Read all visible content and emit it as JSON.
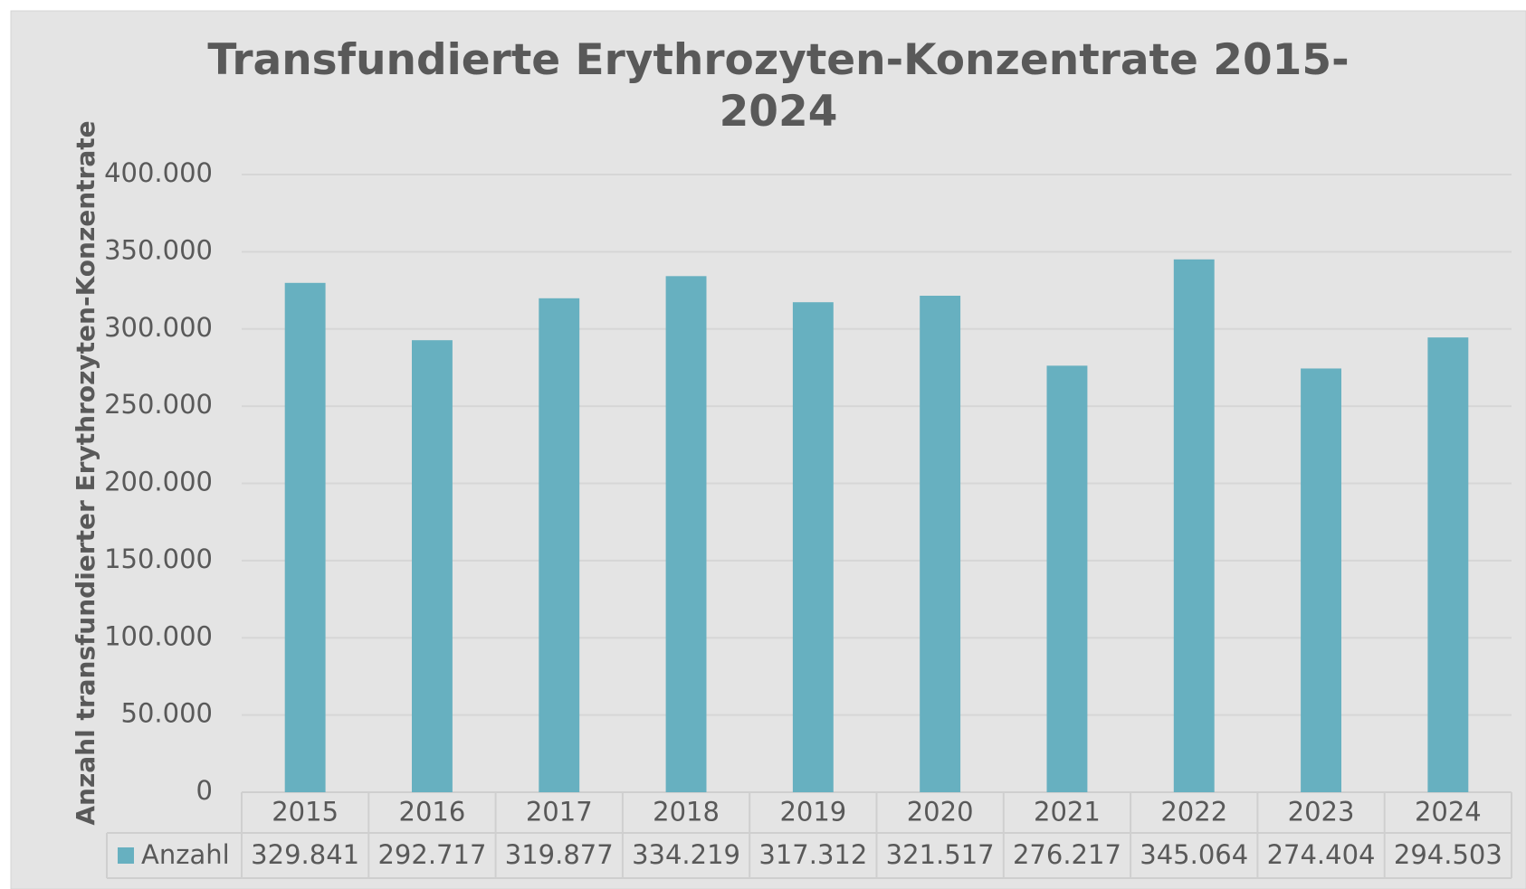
{
  "chart_data": {
    "type": "bar",
    "title": "Transfundierte Erythrozyten-Konzentrate 2015-2024",
    "y_label": "Anzahl transfundierter Erythrozyten-Konzentrate",
    "categories": [
      "2015",
      "2016",
      "2017",
      "2018",
      "2019",
      "2020",
      "2021",
      "2022",
      "2023",
      "2024"
    ],
    "series": [
      {
        "name": "Anzahl",
        "color": "#67b0c0",
        "values": [
          329841,
          292717,
          319877,
          334219,
          317312,
          321517,
          276217,
          345064,
          274404,
          294503
        ],
        "value_labels": [
          "329.841",
          "292.717",
          "319.877",
          "334.219",
          "317.312",
          "321.517",
          "276.217",
          "345.064",
          "274.404",
          "294.503"
        ]
      }
    ],
    "ylim": [
      0,
      400000
    ],
    "yticks": [
      0,
      {
        "value": 50000,
        "label": "50.000"
      },
      {
        "value": 100000,
        "label": "100.000"
      },
      {
        "value": 150000,
        "label": "150.000"
      },
      {
        "value": 200000,
        "label": "200.000"
      },
      {
        "value": 250000,
        "label": "250.000"
      },
      {
        "value": 300000,
        "label": "300.000"
      },
      {
        "value": 350000,
        "label": "350.000"
      },
      {
        "value": 400000,
        "label": "400.000"
      }
    ],
    "grid": true
  }
}
